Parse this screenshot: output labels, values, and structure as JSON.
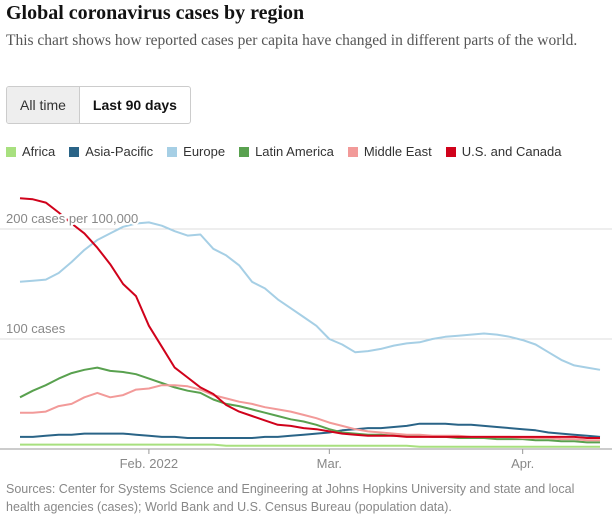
{
  "controls": [
    "All time",
    "Last 90 days"
  ],
  "chart_data": {
    "type": "line",
    "title": "Global coronavirus cases by region",
    "subtitle": "This chart shows how reported cases per capita have changed in different parts of the world.",
    "source": "Sources: Center for Systems Science and Engineering at Johns Hopkins University and state and local health agencies (cases); World Bank and U.S. Census Bureau (population data).",
    "categories": [
      null,
      null,
      null,
      null,
      null,
      null,
      null,
      null,
      null,
      null,
      "Feb. 2022",
      null,
      null,
      null,
      null,
      null,
      null,
      null,
      null,
      null,
      null,
      null,
      null,
      null,
      "Mar.",
      null,
      null,
      null,
      null,
      null,
      null,
      null,
      null,
      null,
      null,
      null,
      null,
      null,
      null,
      "Apr.",
      null,
      null,
      null,
      null,
      null,
      null
    ],
    "ylim": [
      0,
      240
    ],
    "yticks": [
      {
        "value": 100,
        "label": "100 cases"
      },
      {
        "value": 200,
        "label": "200 cases per 100,000"
      }
    ],
    "grid": true,
    "series": [
      {
        "name": "Africa",
        "color": "#a8e07f",
        "values": [
          4,
          4,
          4,
          4,
          4,
          4,
          4,
          4,
          4,
          4,
          4,
          4,
          4,
          4,
          4,
          4,
          3,
          3,
          3,
          3,
          3,
          3,
          3,
          3,
          3,
          3,
          3,
          3,
          3,
          3,
          3,
          2,
          2,
          2,
          2,
          2,
          2,
          2,
          2,
          2,
          2,
          2,
          2,
          2,
          2,
          2
        ]
      },
      {
        "name": "Asia-Pacific",
        "color": "#2a6487",
        "values": [
          11,
          11,
          12,
          13,
          13,
          14,
          14,
          14,
          14,
          13,
          12,
          11,
          11,
          10,
          10,
          10,
          10,
          10,
          10,
          11,
          11,
          12,
          13,
          14,
          15,
          17,
          18,
          19,
          19,
          20,
          21,
          23,
          23,
          23,
          22,
          22,
          21,
          20,
          19,
          18,
          17,
          15,
          14,
          13,
          12,
          11
        ]
      },
      {
        "name": "Europe",
        "color": "#a6cfe5",
        "values": [
          152,
          153,
          154,
          160,
          170,
          181,
          190,
          196,
          202,
          205,
          206,
          203,
          198,
          194,
          195,
          182,
          176,
          167,
          152,
          146,
          136,
          128,
          120,
          112,
          100,
          95,
          88,
          89,
          91,
          94,
          96,
          97,
          100,
          102,
          103,
          104,
          105,
          104,
          102,
          99,
          95,
          88,
          81,
          76,
          74,
          72
        ]
      },
      {
        "name": "Latin America",
        "color": "#59a14f",
        "values": [
          47,
          53,
          58,
          64,
          69,
          72,
          74,
          71,
          70,
          68,
          64,
          60,
          56,
          53,
          51,
          45,
          41,
          39,
          36,
          33,
          30,
          27,
          25,
          22,
          18,
          15,
          14,
          13,
          13,
          12,
          12,
          12,
          11,
          11,
          10,
          10,
          10,
          9,
          9,
          9,
          8,
          8,
          7,
          7,
          6,
          6
        ]
      },
      {
        "name": "Middle East",
        "color": "#f29a99",
        "values": [
          33,
          33,
          34,
          39,
          41,
          47,
          51,
          47,
          49,
          54,
          55,
          58,
          58,
          57,
          54,
          49,
          46,
          43,
          41,
          38,
          36,
          34,
          31,
          28,
          24,
          21,
          18,
          16,
          15,
          14,
          13,
          13,
          12,
          12,
          12,
          11,
          11,
          11,
          11,
          10,
          10,
          10,
          9,
          9,
          8,
          8
        ]
      },
      {
        "name": "U.S. and Canada",
        "color": "#d0021b",
        "values": [
          228,
          227,
          224,
          215,
          205,
          196,
          183,
          168,
          150,
          139,
          112,
          93,
          74,
          65,
          56,
          50,
          40,
          34,
          30,
          26,
          22,
          21,
          19,
          18,
          16,
          14,
          13,
          12,
          12,
          12,
          11,
          11,
          11,
          11,
          11,
          11,
          11,
          11,
          11,
          11,
          11,
          11,
          11,
          11,
          10,
          10
        ]
      }
    ]
  }
}
